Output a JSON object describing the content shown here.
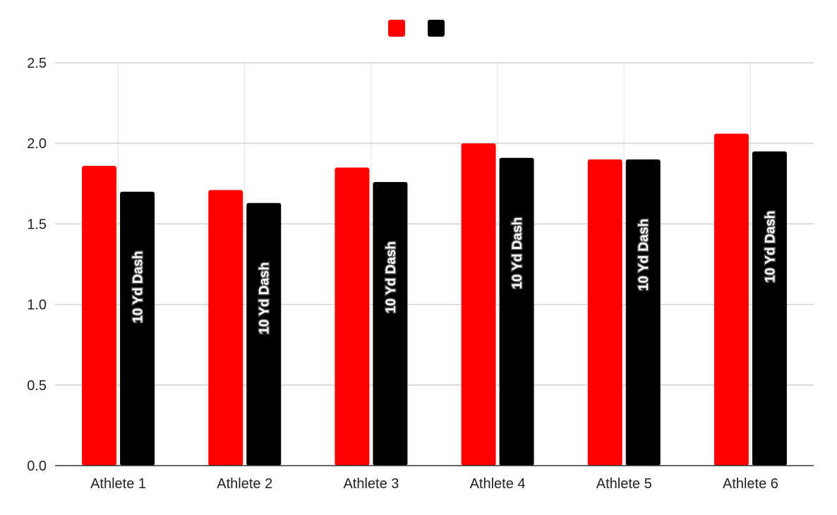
{
  "chart_data": {
    "type": "bar",
    "title": "",
    "xlabel": "",
    "ylabel": "",
    "categories": [
      "Athlete 1",
      "Athlete 2",
      "Athlete 3",
      "Athlete 4",
      "Athlete 5",
      "Athlete 6"
    ],
    "series": [
      {
        "color": "#ff0000",
        "values": [
          1.86,
          1.71,
          1.85,
          2.0,
          1.9,
          2.06
        ]
      },
      {
        "color": "#000000",
        "values": [
          1.7,
          1.63,
          1.76,
          1.91,
          1.9,
          1.95
        ],
        "bar_label": "10 Yd Dash"
      }
    ],
    "ylim": [
      0,
      2.5
    ],
    "yticks": [
      "0.0",
      "0.5",
      "1.0",
      "1.5",
      "2.0",
      "2.5"
    ],
    "grid": true,
    "legend_position": "top-center"
  }
}
